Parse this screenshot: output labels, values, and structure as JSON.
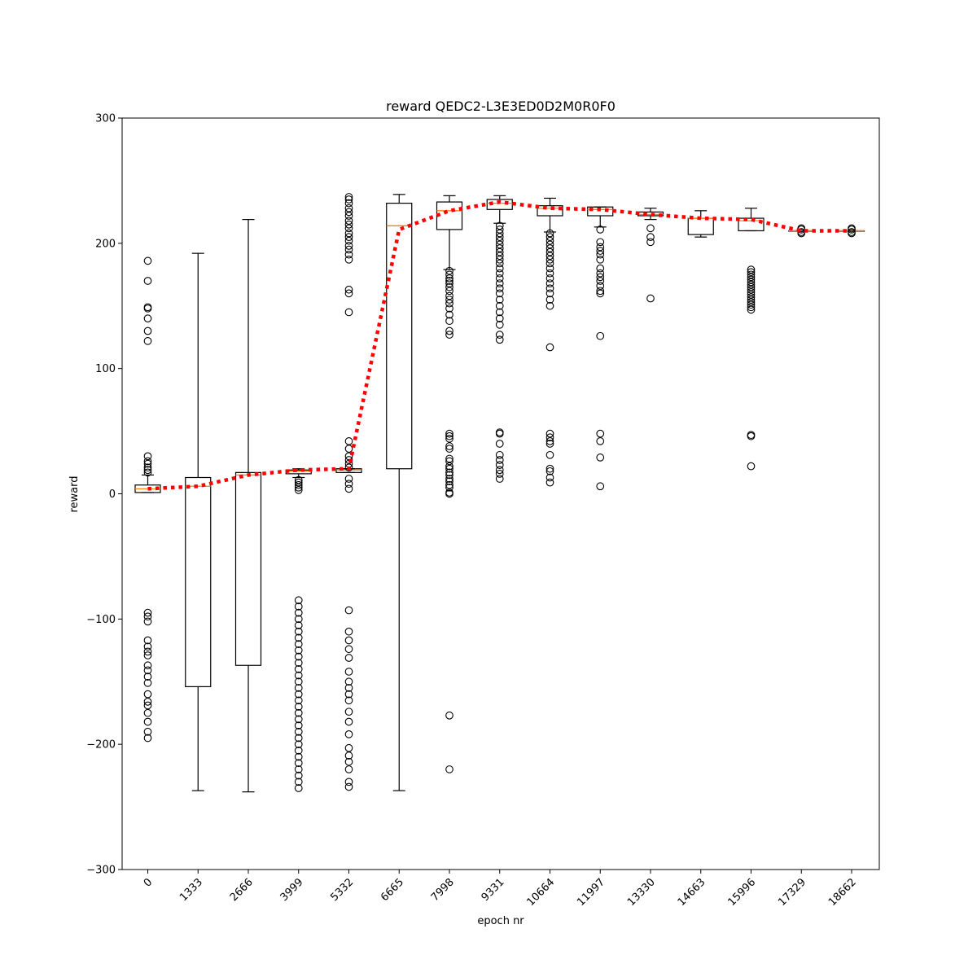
{
  "chart_data": {
    "type": "box",
    "title": "reward QEDC2-L3E3ED0D2M0R0F0",
    "xlabel": "epoch nr",
    "ylabel": "reward",
    "ylim": [
      -300,
      300
    ],
    "yticks": [
      -300,
      -200,
      -100,
      0,
      100,
      200,
      300
    ],
    "ytick_labels": [
      "−300",
      "−200",
      "−100",
      "0",
      "100",
      "200",
      "300"
    ],
    "categories": [
      "0",
      "1333",
      "2666",
      "3999",
      "5332",
      "6665",
      "7998",
      "9331",
      "10664",
      "11997",
      "13330",
      "14663",
      "15996",
      "17329",
      "18662"
    ],
    "mean_line": {
      "color": "#ff0000",
      "style": "dotted",
      "values": [
        4,
        6,
        15,
        19,
        20,
        211,
        226,
        233,
        228,
        227,
        223,
        220,
        219,
        210,
        210
      ]
    },
    "median_color": "#ff7f0e",
    "boxes": [
      {
        "whislo": 1,
        "q1": 1,
        "med": 4,
        "q3": 7,
        "whishi": 15,
        "fliers": [
          17,
          19,
          21,
          24,
          26,
          30,
          186,
          170,
          149,
          148,
          140,
          130,
          122,
          -95,
          -98,
          -102,
          -117,
          -122,
          -126,
          -129,
          -137,
          -141,
          -146,
          -151,
          -160,
          -166,
          -169,
          -175,
          -182,
          -190,
          -195
        ]
      },
      {
        "whislo": -237,
        "q1": -154,
        "med": 6,
        "q3": 13,
        "whishi": 192,
        "fliers": []
      },
      {
        "whislo": -238,
        "q1": -137,
        "med": 15,
        "q3": 17,
        "whishi": 219,
        "fliers": []
      },
      {
        "whislo": 13,
        "q1": 16,
        "med": 18,
        "q3": 19,
        "whishi": 20,
        "fliers": [
          11,
          9,
          7,
          5,
          3,
          -85,
          -90,
          -95,
          -100,
          -105,
          -110,
          -115,
          -120,
          -125,
          -130,
          -135,
          -140,
          -145,
          -150,
          -155,
          -160,
          -165,
          -170,
          -175,
          -180,
          -185,
          -190,
          -195,
          -200,
          -205,
          -210,
          -215,
          -220,
          -225,
          -230,
          -235
        ]
      },
      {
        "whislo": 17,
        "q1": 17,
        "med": 19,
        "q3": 20,
        "whishi": 20,
        "fliers": [
          237,
          235,
          232,
          228,
          225,
          222,
          218,
          215,
          212,
          208,
          205,
          202,
          198,
          195,
          191,
          187,
          163,
          160,
          145,
          42,
          36,
          30,
          27,
          24,
          21,
          12,
          8,
          4,
          -93,
          -110,
          -117,
          -124,
          -131,
          -142,
          -150,
          -155,
          -160,
          -165,
          -174,
          -182,
          -192,
          -203,
          -209,
          -214,
          -220,
          -230,
          -234
        ]
      },
      {
        "whislo": -237,
        "q1": 20,
        "med": 214,
        "q3": 232,
        "whishi": 239,
        "fliers": []
      },
      {
        "whislo": 179,
        "q1": 211,
        "med": 226,
        "q3": 233,
        "whishi": 238,
        "fliers": [
          178,
          175,
          172,
          170,
          168,
          165,
          162,
          158,
          155,
          152,
          148,
          143,
          138,
          130,
          127,
          48,
          46,
          44,
          38,
          36,
          28,
          26,
          22,
          20,
          17,
          15,
          12,
          10,
          7,
          5,
          1,
          0,
          -177,
          -220
        ]
      },
      {
        "whislo": 216,
        "q1": 227,
        "med": 232,
        "q3": 235,
        "whishi": 238,
        "fliers": [
          214,
          211,
          208,
          205,
          202,
          199,
          196,
          193,
          190,
          187,
          184,
          180,
          176,
          172,
          168,
          164,
          160,
          155,
          150,
          145,
          140,
          135,
          127,
          123,
          49,
          48,
          40,
          31,
          27,
          23,
          19,
          16,
          12
        ]
      },
      {
        "whislo": 209,
        "q1": 222,
        "med": 228,
        "q3": 230,
        "whishi": 236,
        "fliers": [
          208,
          205,
          202,
          199,
          196,
          193,
          190,
          187,
          184,
          180,
          176,
          172,
          168,
          164,
          160,
          155,
          150,
          117,
          48,
          45,
          42,
          40,
          31,
          20,
          18,
          13,
          9
        ]
      },
      {
        "whislo": 213,
        "q1": 222,
        "med": 227,
        "q3": 229,
        "whishi": 229,
        "fliers": [
          211,
          201,
          197,
          194,
          191,
          187,
          180,
          176,
          173,
          170,
          166,
          162,
          160,
          126,
          48,
          42,
          29,
          6
        ]
      },
      {
        "whislo": 219,
        "q1": 222,
        "med": 223,
        "q3": 225,
        "whishi": 228,
        "fliers": [
          212,
          205,
          201,
          156
        ]
      },
      {
        "whislo": 205,
        "q1": 207,
        "med": 220,
        "q3": 220,
        "whishi": 226,
        "fliers": []
      },
      {
        "whislo": 210,
        "q1": 210,
        "med": 218,
        "q3": 220,
        "whishi": 228,
        "fliers": [
          179,
          177,
          175,
          173,
          171,
          169,
          167,
          165,
          163,
          161,
          159,
          157,
          155,
          153,
          151,
          149,
          147,
          47,
          46,
          22
        ]
      },
      {
        "whislo": 210,
        "q1": 210,
        "med": 210,
        "q3": 210,
        "whishi": 210,
        "fliers": [
          208,
          209,
          211,
          212
        ]
      },
      {
        "whislo": 210,
        "q1": 210,
        "med": 210,
        "q3": 210,
        "whishi": 210,
        "fliers": [
          208,
          209,
          211,
          212
        ]
      }
    ]
  }
}
